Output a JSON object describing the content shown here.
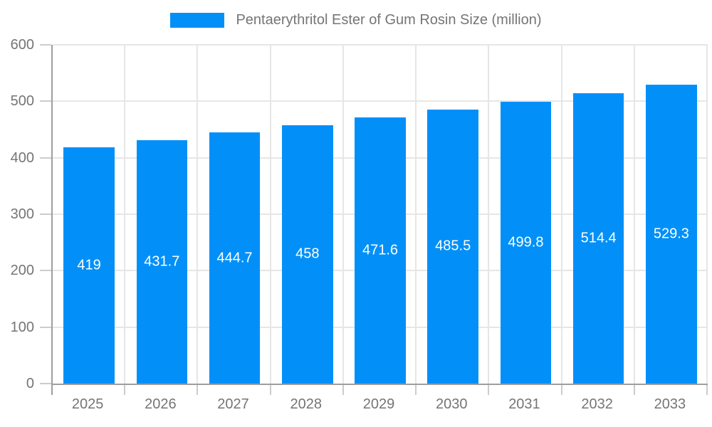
{
  "chart_data": {
    "type": "bar",
    "title": "Pentaerythritol Ester of Gum Rosin Size (million)",
    "categories": [
      "2025",
      "2026",
      "2027",
      "2028",
      "2029",
      "2030",
      "2031",
      "2032",
      "2033"
    ],
    "values": [
      419,
      431.7,
      444.7,
      458,
      471.6,
      485.5,
      499.8,
      514.4,
      529.3
    ],
    "value_labels": [
      "419",
      "431.7",
      "444.7",
      "458",
      "471.6",
      "485.5",
      "499.8",
      "514.4",
      "529.3"
    ],
    "xlabel": "",
    "ylabel": "",
    "ylim": [
      0,
      600
    ],
    "ytick_interval": 100,
    "ytick_labels": [
      "0",
      "100",
      "200",
      "300",
      "400",
      "500",
      "600"
    ],
    "grid": true,
    "legend_position": "top",
    "bar_width_fraction": 0.7,
    "colors": {
      "bar": "#0290f8",
      "axis": "#9e9e9e",
      "gridline": "#e6e6e6",
      "tick": "#cccccc",
      "label": "#757575",
      "value_label": "#ffffff",
      "background": "#ffffff"
    }
  }
}
